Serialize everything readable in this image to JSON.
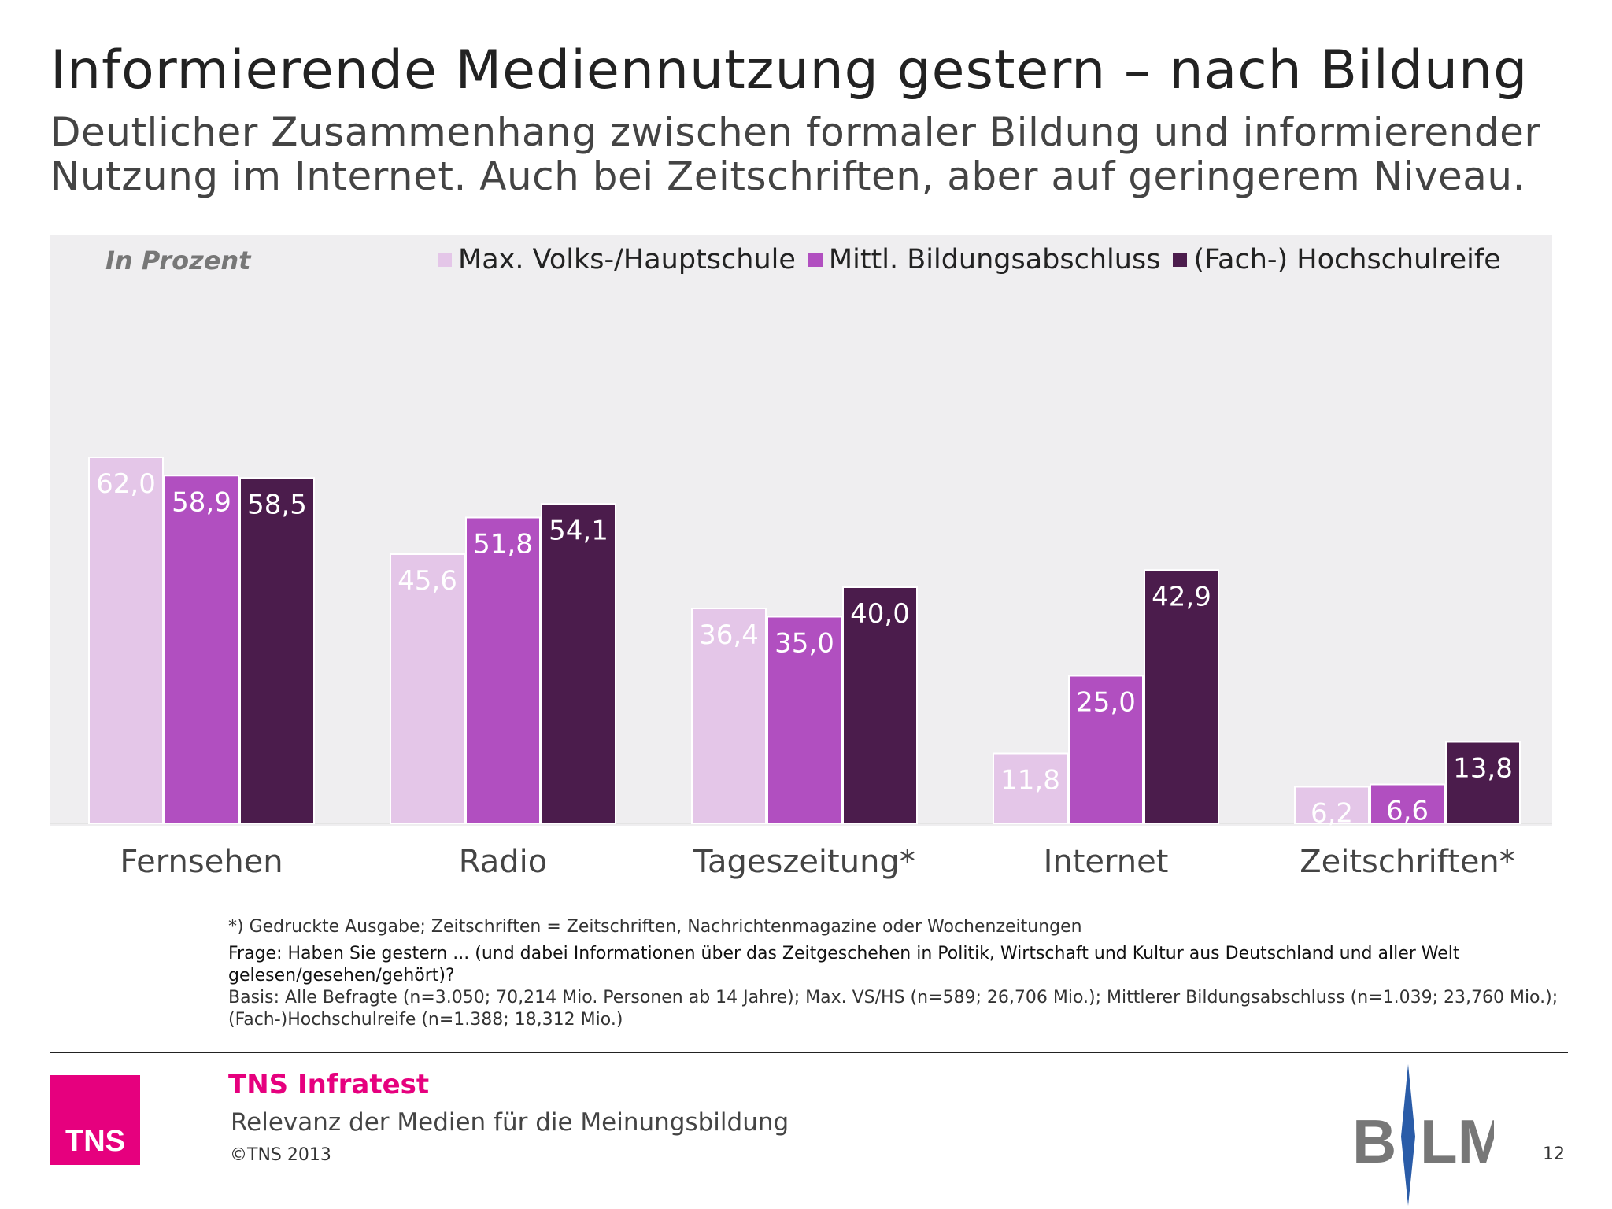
{
  "header": {
    "title": "Informierende Mediennutzung gestern – nach Bildung",
    "subtitle": "Deutlicher Zusammenhang zwischen formaler Bildung und informierender Nutzung im Internet. Auch bei Zeitschriften, aber auf geringerem Niveau."
  },
  "chart_data": {
    "type": "bar",
    "unit_label": "In Prozent",
    "categories": [
      "Fernsehen",
      "Radio",
      "Tageszeitung*",
      "Internet",
      "Zeitschriften*"
    ],
    "series": [
      {
        "name": "Max. Volks-/Hauptschule",
        "color": "#e4c6e8",
        "values": [
          62.0,
          45.6,
          36.4,
          11.8,
          6.2
        ],
        "labels": [
          "62,0",
          "45,6",
          "36,4",
          "11,8",
          "6,2"
        ]
      },
      {
        "name": "Mittl. Bildungsabschluss",
        "color": "#b14fc0",
        "values": [
          58.9,
          51.8,
          35.0,
          25.0,
          6.6
        ],
        "labels": [
          "58,9",
          "51,8",
          "35,0",
          "25,0",
          "6,6"
        ]
      },
      {
        "name": "(Fach-) Hochschulreife",
        "color": "#4b1c4c",
        "values": [
          58.5,
          54.1,
          40.0,
          42.9,
          13.8
        ],
        "labels": [
          "58,5",
          "54,1",
          "40,0",
          "42,9",
          "13,8"
        ]
      }
    ],
    "ylim": [
      0,
      100
    ],
    "legend_position": "top",
    "grid": false
  },
  "footnotes": {
    "note1": "*) Gedruckte Ausgabe; Zeitschriften = Zeitschriften, Nachrichtenmagazine oder Wochenzeitungen",
    "note2": "Frage: Haben Sie gestern ... (und dabei Informationen über das Zeitgeschehen in Politik, Wirtschaft und Kultur aus Deutschland und aller Welt gelesen/gesehen/gehört)?",
    "note3": "Basis: Alle Befragte (n=3.050; 70,214 Mio. Personen ab 14 Jahre); Max. VS/HS (n=589; 26,706 Mio.); Mittlerer Bildungsabschluss (n=1.039; 23,760 Mio.); (Fach-)Hochschulreife (n=1.388; 18,312 Mio.)"
  },
  "footer": {
    "tns_logo_text": "TNS",
    "company": "TNS Infratest",
    "report_title": "Relevanz der Medien für die Meinungsbildung",
    "copyright": "©TNS 2013",
    "partner_logo_text": "BLM",
    "page_number": "12"
  }
}
